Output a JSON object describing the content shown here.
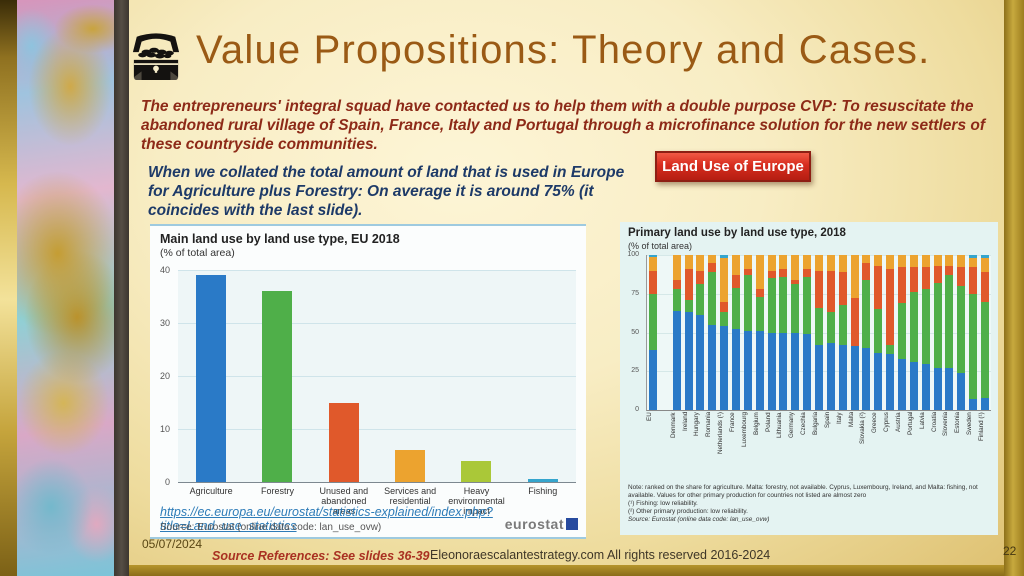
{
  "slide": {
    "title": "Value Propositions: Theory and Cases.",
    "title_icon": "treasure-chest-icon",
    "intro": "The entrepreneurs' integral squad have contacted us to help them with a double purpose CVP: To resuscitate the abandoned rural village of Spain, France, Italy and Portugal through a microfinance solution for the new settlers of these countryside communities.",
    "note": "When we collated the total amount of land that is used in Europe for Agriculture plus Forestry: On average it is around 75% (it coincides with the last slide).",
    "badge": "Land Use of Europe",
    "footer": {
      "date": "05/07/2024",
      "source_refs": "Source References: See slides 36-39",
      "website": "Eleonoraescalantestrategy.com  All rights reserved 2016-2024",
      "page": "22"
    }
  },
  "theme": {
    "title_color": "#9a5a15",
    "intro_color": "#8d2a18",
    "note_color": "#1d3a68",
    "badge_bg": "#cc2418",
    "badge_text": "#ffffff",
    "slide_gold": "#ddbf6e"
  },
  "chart_data": [
    {
      "type": "bar",
      "title": "Main land use by land use type, EU 2018",
      "subtitle": "(% of total area)",
      "categories": [
        "Agriculture",
        "Forestry",
        "Unused and abandoned areas",
        "Services and residential",
        "Heavy environmental impact",
        "Fishing"
      ],
      "values": [
        39,
        36,
        15,
        6,
        4,
        0.5
      ],
      "colors": [
        "#2a7ac7",
        "#4faf49",
        "#e0592b",
        "#eca32f",
        "#aac838",
        "#35a5cd"
      ],
      "ylim": [
        0,
        40
      ],
      "yticks": [
        0,
        10,
        20,
        30,
        40
      ],
      "grid": true,
      "link": "https://ec.europa.eu/eurostat/statistics-explained/index.php?title=Land_use_statistics",
      "source": "Source: Eurostat (online data code: lan_use_ovw)",
      "logo_text": "eurostat"
    },
    {
      "type": "stacked-bar",
      "title": "Primary land use by land use type, 2018",
      "subtitle": "(% of total area)",
      "categories": [
        "EU",
        "Denmark",
        "Ireland",
        "Hungary",
        "Romania",
        "Netherlands (¹)",
        "France",
        "Luxembourg",
        "Belgium",
        "Poland",
        "Lithuania",
        "Germany",
        "Czechia",
        "Bulgaria",
        "Spain",
        "Italy",
        "Malta",
        "Slovakia (²)",
        "Greece",
        "Cyprus",
        "Austria",
        "Portugal",
        "Latvia",
        "Croatia",
        "Slovenia",
        "Estonia",
        "Sweden",
        "Finland (¹)"
      ],
      "gap_after_first": true,
      "series": [
        {
          "name": "Agriculture",
          "color": "#2a7ac7",
          "values": [
            39,
            64,
            63,
            61,
            55,
            54,
            52,
            51,
            51,
            50,
            50,
            50,
            49,
            42,
            43,
            42,
            41,
            40,
            37,
            36,
            33,
            31,
            30,
            27,
            27,
            24,
            7,
            8
          ]
        },
        {
          "name": "Forestry",
          "color": "#4faf49",
          "values": [
            36,
            14,
            8,
            20,
            34,
            9,
            27,
            36,
            22,
            35,
            36,
            31,
            37,
            24,
            20,
            26,
            0,
            44,
            28,
            6,
            36,
            45,
            48,
            55,
            60,
            56,
            68,
            62
          ]
        },
        {
          "name": "Unused and abandoned areas",
          "color": "#e0592b",
          "values": [
            15,
            6,
            20,
            9,
            6,
            7,
            8,
            4,
            5,
            5,
            5,
            3,
            5,
            24,
            27,
            21,
            31,
            11,
            28,
            49,
            23,
            16,
            14,
            11,
            6,
            12,
            17,
            19
          ]
        },
        {
          "name": "Services and residential",
          "color": "#eca32f",
          "values": [
            9,
            16,
            9,
            10,
            5,
            28,
            13,
            9,
            22,
            10,
            9,
            16,
            9,
            10,
            10,
            11,
            28,
            5,
            7,
            9,
            8,
            8,
            8,
            7,
            7,
            8,
            6,
            9
          ]
        },
        {
          "name": "Fishing",
          "color": "#35a5cd",
          "values": [
            1,
            0,
            0,
            0,
            0,
            2,
            0,
            0,
            0,
            0,
            0,
            0,
            0,
            0,
            0,
            0,
            0,
            0,
            0,
            0,
            0,
            0,
            0,
            0,
            0,
            0,
            2,
            2
          ]
        }
      ],
      "ylim": [
        0,
        100
      ],
      "yticks": [
        0,
        25,
        50,
        75,
        100
      ],
      "grid": true,
      "notes": [
        "Note: ranked on the share for agriculture. Malta: forestry, not available. Cyprus, Luxembourg, Ireland, and Malta: fishing, not available. Values for other primary production for countries not listed are almost zero",
        "(¹) Fishing: low reliability.",
        "(²) Other primary production: low reliability."
      ],
      "source": "Source: Eurostat (online data code: lan_use_ovw)"
    }
  ]
}
